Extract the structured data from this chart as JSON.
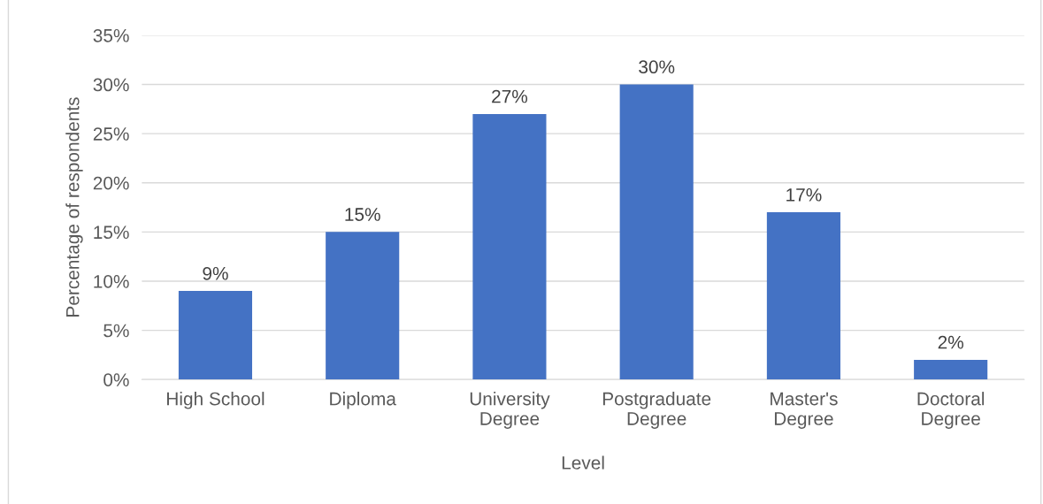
{
  "chart_data": {
    "type": "bar",
    "categories": [
      "High School",
      "Diploma",
      "University\nDegree",
      "Postgraduate\nDegree",
      "Master's\nDegree",
      "Doctoral\nDegree"
    ],
    "values": [
      9,
      15,
      27,
      30,
      17,
      2
    ],
    "value_labels": [
      "9%",
      "15%",
      "27%",
      "30%",
      "17%",
      "2%"
    ],
    "color": "#4472c4",
    "xlabel": "Level",
    "ylabel": "Percentage of respondents",
    "ylim": [
      0,
      35
    ],
    "yticks": [
      {
        "value": 0,
        "label": "0%"
      },
      {
        "value": 5,
        "label": "5%"
      },
      {
        "value": 10,
        "label": "10%"
      },
      {
        "value": 15,
        "label": "15%"
      },
      {
        "value": 20,
        "label": "20%"
      },
      {
        "value": 25,
        "label": "25%"
      },
      {
        "value": 30,
        "label": "30%"
      },
      {
        "value": 35,
        "label": "35%"
      }
    ],
    "grid": "y",
    "legend": false
  }
}
